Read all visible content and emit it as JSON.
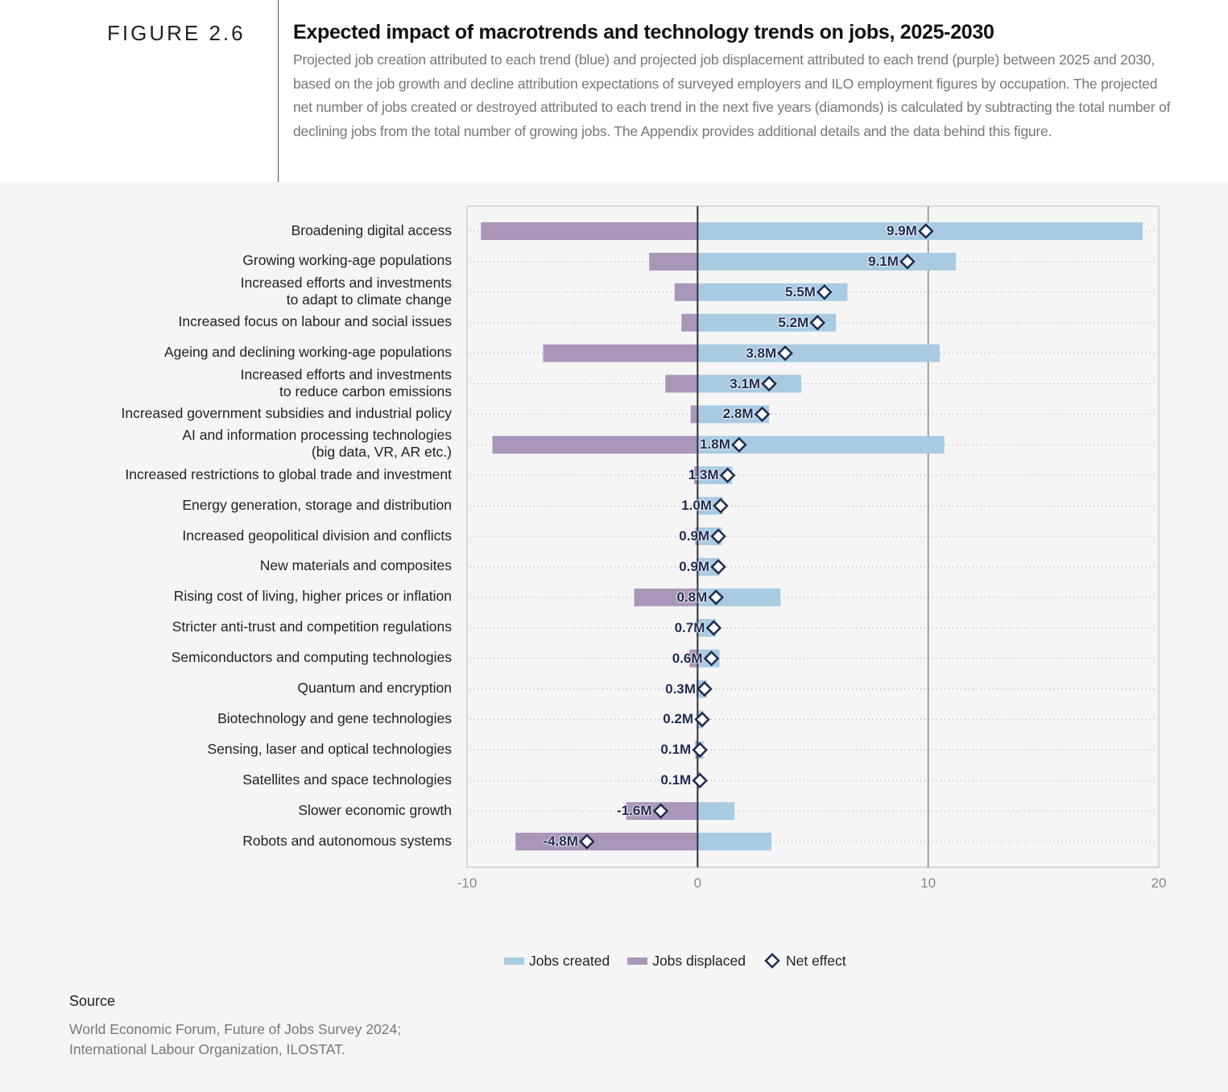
{
  "header": {
    "figure_label": "FIGURE 2.6",
    "title": "Expected impact of macrotrends and technology trends on jobs, 2025-2030",
    "subtitle": "Projected job creation attributed to each trend (blue) and projected job displacement attributed to each trend (purple) between 2025 and 2030, based on the job growth and decline attribution expectations of surveyed employers and ILO employment figures by occupation. The projected net number of jobs created or destroyed attributed to each trend in the next five years (diamonds) is calculated by subtracting the total number of declining jobs from the total number of growing jobs. The Appendix provides additional details and the data behind this figure."
  },
  "chart_data": {
    "type": "bar",
    "orientation": "horizontal",
    "categories": [
      "Broadening digital access",
      "Growing working-age populations",
      "Increased efforts and investments\nto adapt to climate change",
      "Increased focus on labour and social issues",
      "Ageing and declining working-age populations",
      "Increased efforts and investments\nto reduce carbon emissions",
      "Increased government subsidies and industrial policy",
      "AI and information processing technologies\n(big data, VR, AR etc.)",
      "Increased restrictions to global trade and investment",
      "Energy generation, storage and distribution",
      "Increased geopolitical division and conflicts",
      "New materials and composites",
      "Rising cost of living, higher prices or inflation",
      "Stricter anti-trust and competition regulations",
      "Semiconductors and computing technologies",
      "Quantum and encryption",
      "Biotechnology and gene technologies",
      "Sensing, laser and optical technologies",
      "Satellites and space technologies",
      "Slower economic growth",
      "Robots and autonomous systems"
    ],
    "series": [
      {
        "name": "Jobs created",
        "values": [
          19.3,
          11.2,
          6.5,
          6.0,
          10.5,
          4.5,
          3.1,
          10.7,
          1.5,
          1.1,
          1.05,
          0.95,
          3.6,
          0.8,
          0.95,
          0.4,
          0.25,
          0.25,
          0.1,
          1.6,
          3.2
        ]
      },
      {
        "name": "Jobs displaced",
        "values": [
          -9.4,
          -2.1,
          -1.0,
          -0.7,
          -6.7,
          -1.4,
          -0.3,
          -8.9,
          -0.15,
          0,
          -0.1,
          -0.05,
          -2.75,
          -0.05,
          -0.35,
          -0.05,
          0,
          -0.1,
          0,
          -3.1,
          -7.9
        ]
      },
      {
        "name": "Net effect",
        "values": [
          9.9,
          9.1,
          5.5,
          5.2,
          3.8,
          3.1,
          2.8,
          1.8,
          1.3,
          1.0,
          0.9,
          0.9,
          0.8,
          0.7,
          0.6,
          0.3,
          0.2,
          0.1,
          0.1,
          -1.6,
          -4.8
        ],
        "labels": [
          "9.9M",
          "9.1M",
          "5.5M",
          "5.2M",
          "3.8M",
          "3.1M",
          "2.8M",
          "1.8M",
          "1.3M",
          "1.0M",
          "0.9M",
          "0.9M",
          "0.8M",
          "0.7M",
          "0.6M",
          "0.3M",
          "0.2M",
          "0.1M",
          "0.1M",
          "-1.6M",
          "-4.8M"
        ]
      }
    ],
    "xlim": [
      -10,
      20
    ],
    "xticks": [
      "-10",
      "0",
      "10",
      "20"
    ],
    "grid": "dotted row lines, vertical line at 10",
    "legend": "bottom-center",
    "colors": {
      "created": "#a8cbe2",
      "displaced": "#a996b9",
      "net": "#1f2a50"
    }
  },
  "source": {
    "heading": "Source",
    "text": "World Economic Forum, Future of Jobs Survey 2024;\nInternational Labour Organization, ILOSTAT."
  }
}
